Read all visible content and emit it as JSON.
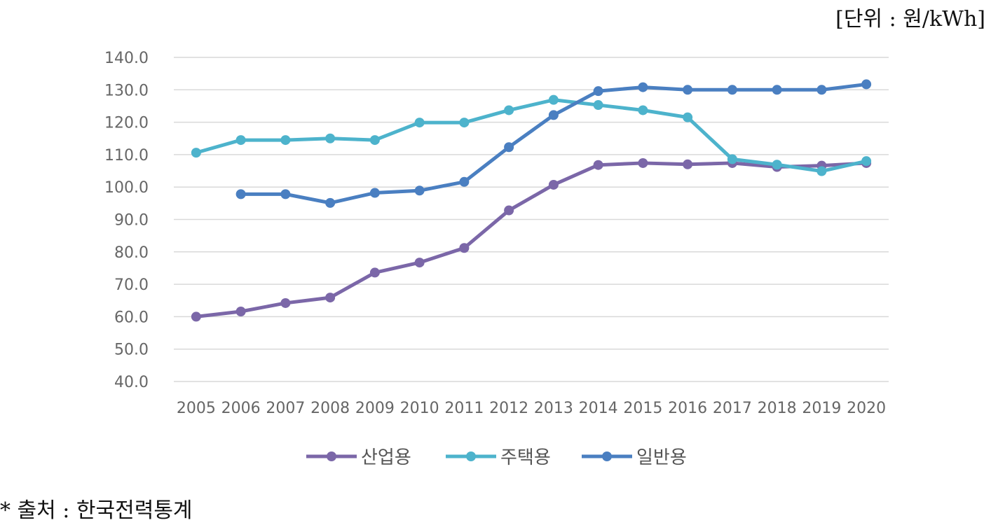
{
  "unit_label": "[단위 : 원/kWh]",
  "source_note": "* 출처 : 한국전력통계",
  "colors": {
    "industrial": "#7b67a8",
    "residential": "#4db3cc",
    "general": "#4a7fc1",
    "grid": "#d9d9d9",
    "tick": "#666666"
  },
  "chart_data": {
    "type": "line",
    "x": [
      "2005",
      "2006",
      "2007",
      "2008",
      "2009",
      "2010",
      "2011",
      "2012",
      "2013",
      "2014",
      "2015",
      "2016",
      "2017",
      "2018",
      "2019",
      "2020"
    ],
    "ylim": [
      40,
      140
    ],
    "yticks": [
      "40.0",
      "50.0",
      "60.0",
      "70.0",
      "80.0",
      "90.0",
      "100.0",
      "110.0",
      "120.0",
      "130.0",
      "140.0"
    ],
    "grid": true,
    "legend_position": "bottom",
    "series": [
      {
        "name": "산업용",
        "color": "#7b67a8",
        "values": [
          60.0,
          61.6,
          64.2,
          65.9,
          73.6,
          76.7,
          81.2,
          92.8,
          100.7,
          106.8,
          107.4,
          107.0,
          107.4,
          106.2,
          106.6,
          107.4
        ]
      },
      {
        "name": "주택용",
        "color": "#4db3cc",
        "values": [
          110.6,
          114.5,
          114.5,
          115.0,
          114.5,
          119.9,
          119.9,
          123.7,
          126.9,
          125.3,
          123.7,
          121.5,
          108.6,
          106.9,
          104.9,
          108.0
        ]
      },
      {
        "name": "일반용",
        "color": "#4a7fc1",
        "values": [
          null,
          97.8,
          97.8,
          95.1,
          98.2,
          98.9,
          101.6,
          112.3,
          122.2,
          129.6,
          130.8,
          130.0,
          130.0,
          130.0,
          130.0,
          131.7
        ]
      }
    ]
  }
}
